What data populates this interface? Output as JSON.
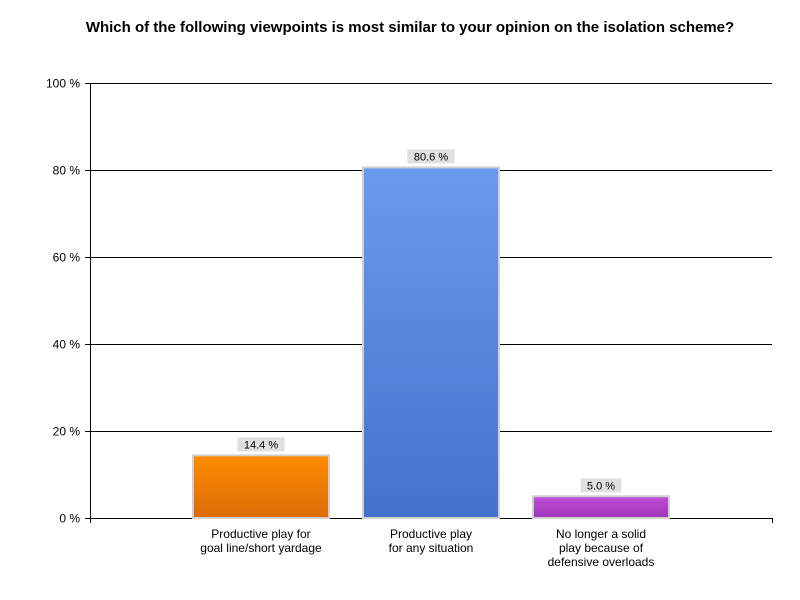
{
  "chart_data": {
    "type": "bar",
    "title": "Which of the following viewpoints is most similar to your opinion on the isolation scheme?",
    "categories": [
      "Productive play for goal line/short yardage",
      "Productive play for any situation",
      "No longer a solid play because of defensive overloads"
    ],
    "category_lines": [
      [
        "Productive play for",
        "goal line/short yardage"
      ],
      [
        "Productive play",
        "for any situation"
      ],
      [
        "No longer a solid",
        "play because of",
        "defensive overloads"
      ]
    ],
    "values": [
      14.4,
      80.6,
      5.0
    ],
    "data_labels": [
      "14.4 %",
      "80.6 %",
      "5.0 %"
    ],
    "ylim": [
      0,
      100
    ],
    "y_ticks": [
      0,
      20,
      40,
      60,
      80,
      100
    ],
    "y_tick_labels": [
      "0 %",
      "20 %",
      "40 %",
      "60 %",
      "80 %",
      "100 %"
    ],
    "xlabel": "",
    "ylabel": "",
    "grid": true,
    "legend": "none",
    "colors": {
      "bars": [
        [
          "#ff8c00",
          "#dc6b06"
        ],
        [
          "#6b9bed",
          "#4272cc"
        ],
        [
          "#c050d8",
          "#9d34b8"
        ]
      ],
      "bar_border": "#d0d0d0",
      "label_box": "#e0e0e0",
      "grid": "#000000"
    }
  }
}
